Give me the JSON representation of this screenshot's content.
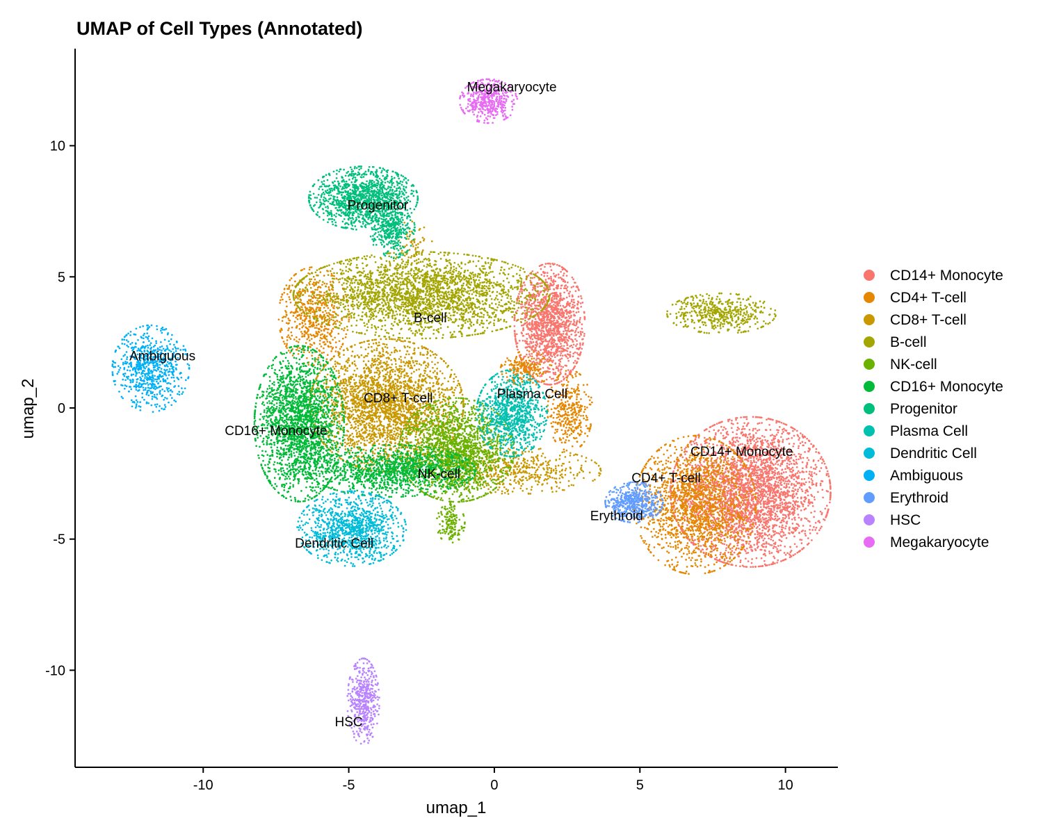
{
  "chart_data": {
    "type": "scatter",
    "title": "UMAP of Cell Types (Annotated)",
    "xlabel": "umap_1",
    "ylabel": "umap_2",
    "xlim": [
      -14.4,
      11.8
    ],
    "ylim": [
      -13.7,
      13.7
    ],
    "xticks": [
      -10,
      -5,
      0,
      5,
      10
    ],
    "xtick_labels": [
      "-10",
      "-5",
      "0",
      "5",
      "10"
    ],
    "yticks": [
      10,
      5,
      0,
      -5,
      -10
    ],
    "ytick_labels": [
      "10",
      "5",
      "0",
      "-5",
      "-10"
    ],
    "grid": false,
    "legend": "right",
    "series": [
      {
        "name": "CD14+ Monocyte",
        "color": "#F8766D",
        "label": {
          "text": "CD14+ Monocyte",
          "x": 8.5,
          "y": -1.7
        },
        "blobs": [
          {
            "x": 8.8,
            "y": -3.2,
            "sx": 1.25,
            "sy": 1.3,
            "n": 3200
          },
          {
            "x": 1.9,
            "y": 3.2,
            "sx": 0.55,
            "sy": 1.05,
            "n": 1500
          }
        ]
      },
      {
        "name": "CD4+ T-cell",
        "color": "#E58700",
        "label": {
          "text": "CD4+ T-cell",
          "x": 5.9,
          "y": -2.7
        },
        "blobs": [
          {
            "x": 6.9,
            "y": -3.7,
            "sx": 0.95,
            "sy": 1.2,
            "n": 1600
          },
          {
            "x": -6.2,
            "y": 3.5,
            "sx": 0.55,
            "sy": 0.85,
            "n": 600
          },
          {
            "x": 2.6,
            "y": -0.1,
            "sx": 0.35,
            "sy": 0.7,
            "n": 350
          },
          {
            "x": 1.1,
            "y": 1.5,
            "sx": 0.4,
            "sy": 0.3,
            "n": 200
          }
        ]
      },
      {
        "name": "CD8+ T-cell",
        "color": "#C99800",
        "label": {
          "text": "CD8+ T-cell",
          "x": -3.3,
          "y": 0.35
        },
        "blobs": [
          {
            "x": -3.7,
            "y": 0.1,
            "sx": 1.2,
            "sy": 1.15,
            "n": 2600
          },
          {
            "x": 0.8,
            "y": -2.4,
            "sx": 1.3,
            "sy": 0.4,
            "n": 500
          },
          {
            "x": -2.8,
            "y": 6.3,
            "sx": 0.3,
            "sy": 0.4,
            "n": 60
          }
        ]
      },
      {
        "name": "B-cell",
        "color": "#A3A500",
        "label": {
          "text": "B-cell",
          "x": -2.2,
          "y": 3.4
        },
        "blobs": [
          {
            "x": -2.5,
            "y": 4.3,
            "sx": 2.0,
            "sy": 0.75,
            "n": 2600
          },
          {
            "x": 7.8,
            "y": 3.6,
            "sx": 0.85,
            "sy": 0.35,
            "n": 500
          }
        ]
      },
      {
        "name": "NK-cell",
        "color": "#6BB100",
        "label": {
          "text": "NK-cell",
          "x": -1.9,
          "y": -2.55
        },
        "blobs": [
          {
            "x": -1.3,
            "y": -1.6,
            "sx": 0.9,
            "sy": 0.9,
            "n": 1900
          },
          {
            "x": -1.5,
            "y": -4.4,
            "sx": 0.22,
            "sy": 0.35,
            "n": 160
          }
        ]
      },
      {
        "name": "CD16+ Monocyte",
        "color": "#00BA38",
        "label": {
          "text": "CD16+ Monocyte",
          "x": -7.5,
          "y": -0.9
        },
        "blobs": [
          {
            "x": -6.7,
            "y": -0.6,
            "sx": 0.7,
            "sy": 1.35,
            "n": 2200
          },
          {
            "x": -3.5,
            "y": -2.4,
            "sx": 1.3,
            "sy": 0.45,
            "n": 1200
          }
        ]
      },
      {
        "name": "Progenitor",
        "color": "#00BF7D",
        "label": {
          "text": "Progenitor",
          "x": -4.0,
          "y": 7.7
        },
        "blobs": [
          {
            "x": -4.5,
            "y": 8.0,
            "sx": 0.85,
            "sy": 0.55,
            "n": 1300
          },
          {
            "x": -3.5,
            "y": 6.8,
            "sx": 0.35,
            "sy": 0.5,
            "n": 350
          }
        ]
      },
      {
        "name": "Plasma Cell",
        "color": "#00C0AF",
        "label": {
          "text": "Plasma Cell",
          "x": 1.3,
          "y": 0.5
        },
        "blobs": [
          {
            "x": 0.6,
            "y": -0.2,
            "sx": 0.55,
            "sy": 0.75,
            "n": 900
          }
        ]
      },
      {
        "name": "Dendritic Cell",
        "color": "#00BCD8",
        "label": {
          "text": "Dendritic Cell",
          "x": -5.5,
          "y": -5.2
        },
        "blobs": [
          {
            "x": -4.9,
            "y": -4.6,
            "sx": 0.85,
            "sy": 0.65,
            "n": 1100
          }
        ]
      },
      {
        "name": "Ambiguous",
        "color": "#00B0F6",
        "label": {
          "text": "Ambiguous",
          "x": -11.4,
          "y": 1.95
        },
        "blobs": [
          {
            "x": -11.8,
            "y": 1.5,
            "sx": 0.6,
            "sy": 0.75,
            "n": 700
          }
        ]
      },
      {
        "name": "Erythroid",
        "color": "#619CFF",
        "label": {
          "text": "Erythroid",
          "x": 4.2,
          "y": -4.15
        },
        "blobs": [
          {
            "x": 4.8,
            "y": -3.6,
            "sx": 0.45,
            "sy": 0.35,
            "n": 500
          }
        ]
      },
      {
        "name": "HSC",
        "color": "#B983FF",
        "label": {
          "text": "HSC",
          "x": -5.0,
          "y": -12.0
        },
        "blobs": [
          {
            "x": -4.5,
            "y": -11.2,
            "sx": 0.25,
            "sy": 0.75,
            "n": 450
          }
        ]
      },
      {
        "name": "Megakaryocyte",
        "color": "#E76BF3",
        "label": {
          "text": "Megakaryocyte",
          "x": 0.6,
          "y": 12.2
        },
        "blobs": [
          {
            "x": -0.2,
            "y": 11.7,
            "sx": 0.45,
            "sy": 0.38,
            "n": 450
          }
        ]
      }
    ]
  }
}
